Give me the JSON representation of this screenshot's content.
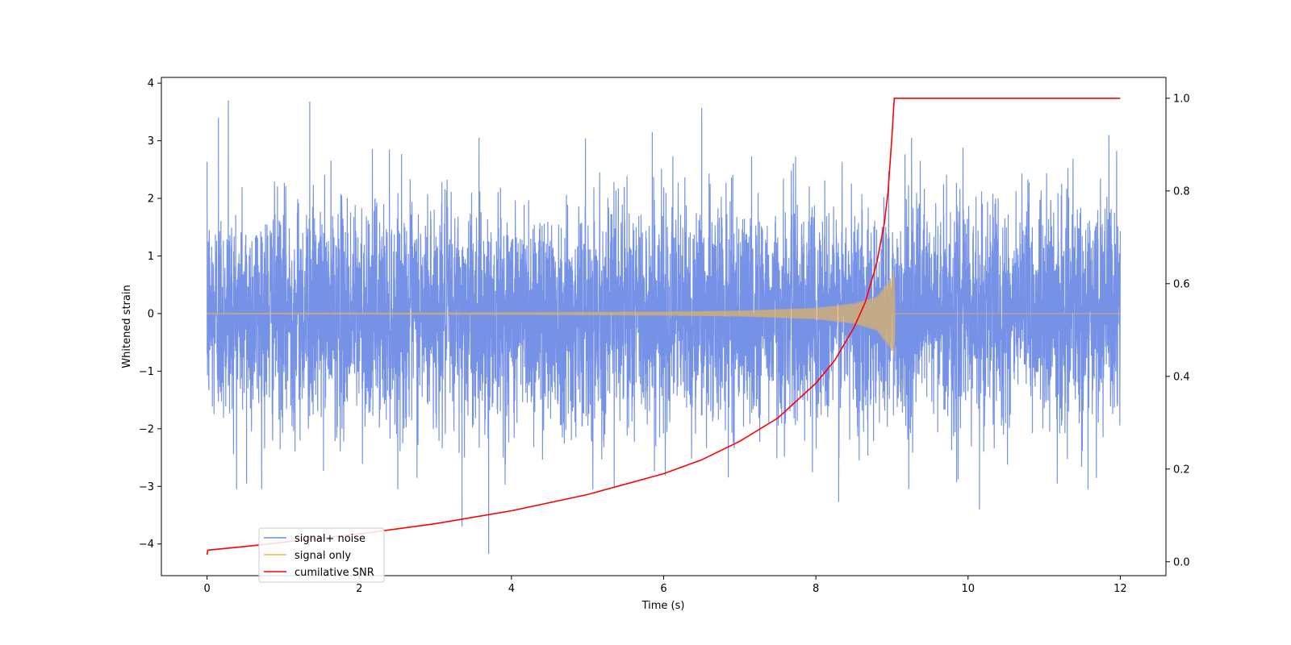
{
  "chart_data": {
    "type": "line",
    "xlabel": "Time (s)",
    "ylabel": "Whitened strain",
    "xlim": [
      -0.6,
      12.6
    ],
    "ylim": [
      -4.55,
      4.1
    ],
    "y2lim": [
      -0.03,
      1.045
    ],
    "xticks": [
      0,
      2,
      4,
      6,
      8,
      10,
      12
    ],
    "yticks": [
      -4,
      -3,
      -2,
      -1,
      0,
      1,
      2,
      3,
      4
    ],
    "y2ticks": [
      0.0,
      0.2,
      0.4,
      0.6,
      0.8,
      1.0
    ],
    "xtick_labels": [
      "0",
      "2",
      "4",
      "6",
      "8",
      "10",
      "12"
    ],
    "ytick_labels": [
      "−4",
      "−3",
      "−2",
      "−1",
      "0",
      "1",
      "2",
      "3",
      "4"
    ],
    "y2tick_labels": [
      "0.0",
      "0.2",
      "0.4",
      "0.6",
      "0.8",
      "1.0"
    ],
    "legend_position": "lower-left",
    "grid": false,
    "series": [
      {
        "name": "signal+ noise",
        "color": "#6f8ce6",
        "axis": "left",
        "noise_sigma": 0.95,
        "extreme_points": [
          {
            "x": 0.28,
            "y": 3.7
          },
          {
            "x": 1.35,
            "y": 3.68
          },
          {
            "x": 0.15,
            "y": 3.4
          },
          {
            "x": 6.5,
            "y": 3.57
          },
          {
            "x": 5.85,
            "y": 3.15
          },
          {
            "x": 11.85,
            "y": 3.1
          },
          {
            "x": 3.7,
            "y": -4.17
          },
          {
            "x": 3.35,
            "y": -3.7
          },
          {
            "x": 10.15,
            "y": -3.4
          },
          {
            "x": 8.3,
            "y": -3.27
          },
          {
            "x": 0.52,
            "y": -2.95
          },
          {
            "x": 5.35,
            "y": -3.0
          }
        ]
      },
      {
        "name": "signal only",
        "color": "#f5b94a",
        "axis": "left",
        "chirp_end": 9.03,
        "peak_amplitude": 0.85,
        "x": [
          0,
          2,
          4,
          6,
          7,
          8,
          8.5,
          8.8,
          9.0,
          9.03,
          9.04,
          12
        ],
        "amplitude": [
          0.01,
          0.015,
          0.02,
          0.035,
          0.05,
          0.1,
          0.18,
          0.3,
          0.65,
          0.85,
          0.0,
          0.0
        ]
      },
      {
        "name": "cumilative SNR",
        "color": "#ff0000",
        "axis": "right",
        "x": [
          0,
          0.01,
          0.5,
          1,
          2,
          3,
          4,
          5,
          6,
          6.5,
          7,
          7.5,
          8,
          8.25,
          8.5,
          8.65,
          8.8,
          8.9,
          8.95,
          9.0,
          9.03,
          9.04,
          12
        ],
        "values": [
          0.015,
          0.025,
          0.033,
          0.042,
          0.06,
          0.082,
          0.11,
          0.145,
          0.19,
          0.22,
          0.26,
          0.31,
          0.385,
          0.435,
          0.505,
          0.56,
          0.645,
          0.73,
          0.8,
          0.92,
          1.0,
          1.0,
          1.0
        ]
      }
    ]
  }
}
